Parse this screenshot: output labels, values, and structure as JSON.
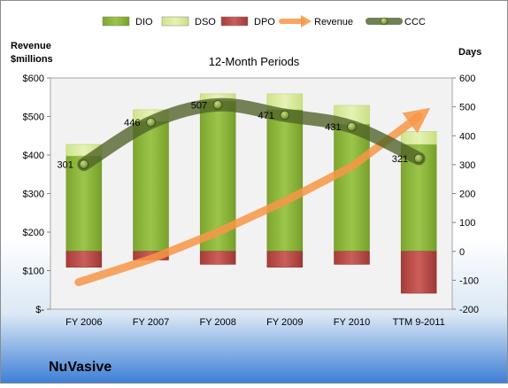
{
  "chart_data": {
    "type": "bar",
    "title": "12-Month Periods",
    "company": "NuVasive",
    "left_axis": {
      "label_line1": "Revenue",
      "label_line2": "$millions",
      "ylim": [
        0,
        600
      ],
      "ticks": [
        "$-",
        "$100",
        "$200",
        "$300",
        "$400",
        "$500",
        "$600"
      ]
    },
    "right_axis": {
      "label": "Days",
      "ylim": [
        -200,
        600
      ],
      "ticks": [
        "-200",
        "-100",
        "0",
        "100",
        "200",
        "300",
        "400",
        "500",
        "600"
      ]
    },
    "categories": [
      "FY 2006",
      "FY 2007",
      "FY 2008",
      "FY 2009",
      "FY 2010",
      "TTM 9-2011"
    ],
    "legend": [
      "DIO",
      "DSO",
      "DPO",
      "Revenue",
      "CCC"
    ],
    "series": [
      {
        "name": "DIO",
        "axis": "right",
        "values": [
          330,
          450,
          520,
          490,
          440,
          370
        ]
      },
      {
        "name": "DSO",
        "axis": "right",
        "values": [
          40,
          40,
          25,
          55,
          65,
          45
        ]
      },
      {
        "name": "DPO",
        "axis": "right",
        "values": [
          -55,
          -30,
          -45,
          -55,
          -45,
          -145
        ]
      },
      {
        "name": "Revenue",
        "axis": "left",
        "values": [
          70,
          130,
          200,
          280,
          370,
          500
        ]
      },
      {
        "name": "CCC",
        "axis": "right",
        "values": [
          301,
          446,
          507,
          471,
          431,
          321
        ],
        "labels": [
          "301",
          "446",
          "507",
          "471",
          "431",
          "321"
        ]
      }
    ],
    "colors": {
      "DIO": "#8fb83a",
      "DSO": "#d9ea9a",
      "DPO": "#c0504d",
      "Revenue": "#f79646",
      "CCC": "#4f6228"
    },
    "grid": false,
    "legend_position": "top"
  }
}
